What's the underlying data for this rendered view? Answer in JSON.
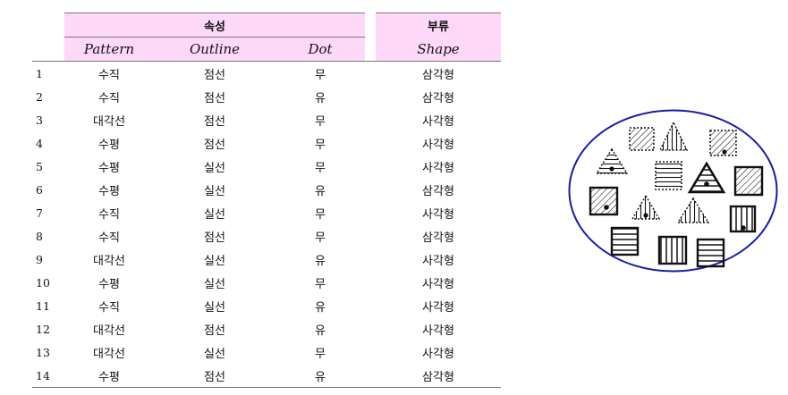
{
  "table": {
    "group_headers": {
      "attributes": "속성",
      "class": "부류"
    },
    "column_headers": [
      "Pattern",
      "Outline",
      "Dot",
      "Shape"
    ],
    "rows": [
      {
        "id": "1",
        "pattern": "수직",
        "outline": "점선",
        "dot": "무",
        "shape": "삼각형"
      },
      {
        "id": "2",
        "pattern": "수직",
        "outline": "점선",
        "dot": "유",
        "shape": "삼각형"
      },
      {
        "id": "3",
        "pattern": "대각선",
        "outline": "점선",
        "dot": "무",
        "shape": "사각형"
      },
      {
        "id": "4",
        "pattern": "수평",
        "outline": "점선",
        "dot": "무",
        "shape": "사각형"
      },
      {
        "id": "5",
        "pattern": "수평",
        "outline": "실선",
        "dot": "무",
        "shape": "사각형"
      },
      {
        "id": "6",
        "pattern": "수평",
        "outline": "실선",
        "dot": "유",
        "shape": "삼각형"
      },
      {
        "id": "7",
        "pattern": "수직",
        "outline": "실선",
        "dot": "무",
        "shape": "사각형"
      },
      {
        "id": "8",
        "pattern": "수직",
        "outline": "점선",
        "dot": "무",
        "shape": "삼각형"
      },
      {
        "id": "9",
        "pattern": "대각선",
        "outline": "실선",
        "dot": "유",
        "shape": "사각형"
      },
      {
        "id": "10",
        "pattern": "수평",
        "outline": "실선",
        "dot": "무",
        "shape": "사각형"
      },
      {
        "id": "11",
        "pattern": "수직",
        "outline": "실선",
        "dot": "유",
        "shape": "사각형"
      },
      {
        "id": "12",
        "pattern": "대각선",
        "outline": "점선",
        "dot": "유",
        "shape": "사각형"
      },
      {
        "id": "13",
        "pattern": "대각선",
        "outline": "실선",
        "dot": "무",
        "shape": "사각형"
      },
      {
        "id": "14",
        "pattern": "수평",
        "outline": "점선",
        "dot": "유",
        "shape": "삼각형"
      }
    ]
  },
  "colors": {
    "header_highlight": "#fdd8f8",
    "ellipse_border": "#1a1aa8"
  }
}
